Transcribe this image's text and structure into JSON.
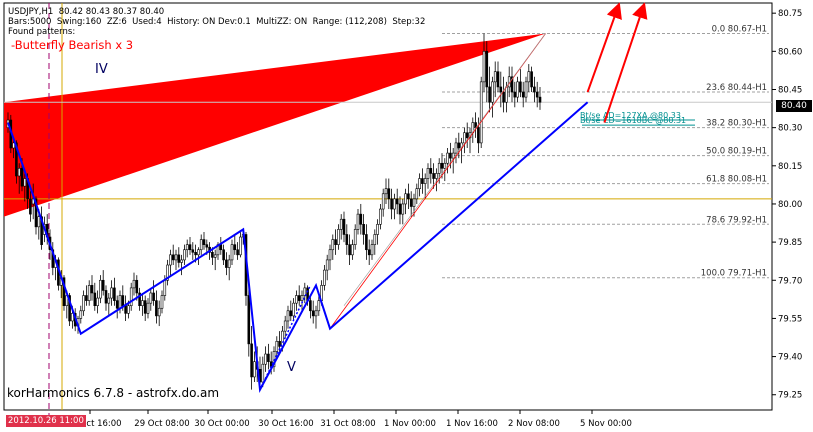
{
  "header": {
    "line1": "USDJPY,H1  80.42 80.43 80.37 80.40",
    "line2": "Bars:5000  Swing:160  ZZ:6  Used:4  History: ON Dev:0.1  MultiZZ: ON  Range: (112,208)  Step:32",
    "line3": "Found patterns:",
    "pattern": "-Butterfly Bearish x 3"
  },
  "labels": {
    "wave_iv": "IV",
    "wave_v": "V",
    "footer": "korHarmonics 6.7.8 - astrofx.do.am"
  },
  "current_price": "80.40",
  "date_flag": "2012.10.26 11:00",
  "colors": {
    "candle": "#000000",
    "red": "#ff0000",
    "blue": "#0000ff",
    "teal": "#009090",
    "fib": "#a0a0a0",
    "gold": "#d4a800",
    "magenta": "#a0006e",
    "axis": "#000000"
  },
  "chart_data": {
    "type": "line",
    "title": "USDJPY,H1",
    "ylim": [
      79.19,
      80.79
    ],
    "y_ticks": [
      "80.75",
      "80.60",
      "80.45",
      "80.30",
      "80.15",
      "80.00",
      "79.85",
      "79.70",
      "79.55",
      "79.40",
      "79.25"
    ],
    "x_ticks": [
      "ct 16:00",
      "29 Oct 08:00",
      "30 Oct 00:00",
      "30 Oct 16:00",
      "31 Oct 08:00",
      "1 Nov 00:00",
      "1 Nov 16:00",
      "2 Nov 08:00",
      "5 Nov 00:00"
    ],
    "fib_levels": [
      {
        "label": "0.0 80.67-H1",
        "value": 80.67
      },
      {
        "label": "23.6 80.44-H1",
        "value": 80.44
      },
      {
        "label": "38.2 80.30-H1",
        "value": 80.3
      },
      {
        "label": "50.0 80.19-H1",
        "value": 80.19
      },
      {
        "label": "61.8 80.08-H1",
        "value": 80.08
      },
      {
        "label": "78.6 79.92-H1",
        "value": 79.92
      },
      {
        "label": "100.0 79.71-H1",
        "value": 79.71
      }
    ],
    "target_labels": [
      {
        "label": "Bt/se AD=127XA  @80.33",
        "value": 80.33
      },
      {
        "label": "Bt/se CD=1618BC  @80.31",
        "value": 80.31
      }
    ],
    "horizontal_lines": [
      80.02
    ],
    "last_price": 80.4,
    "zigzag": [
      {
        "bar": 0,
        "price": 80.32
      },
      {
        "bar": 26,
        "price": 79.49
      },
      {
        "bar": 84,
        "price": 79.9
      },
      {
        "bar": 90,
        "price": 79.27
      },
      {
        "bar": 110,
        "price": 79.68
      },
      {
        "bar": 115,
        "price": 79.51
      },
      {
        "bar": 207,
        "price": 80.4
      }
    ],
    "forecast_arrows": [
      {
        "from": {
          "bar": 207,
          "price": 80.44
        },
        "to": {
          "bar": 218,
          "price": 80.79
        }
      },
      {
        "from": {
          "bar": 213,
          "price": 80.32
        },
        "to": {
          "bar": 227,
          "price": 80.79
        }
      }
    ],
    "ohlc": [
      [
        80.3,
        80.36,
        80.28,
        80.33
      ],
      [
        80.33,
        80.35,
        80.2,
        80.22
      ],
      [
        80.22,
        80.26,
        80.18,
        80.24
      ],
      [
        80.24,
        80.25,
        80.08,
        80.11
      ],
      [
        80.11,
        80.16,
        80.04,
        80.14
      ],
      [
        80.14,
        80.18,
        80.05,
        80.07
      ],
      [
        80.07,
        80.13,
        80.01,
        80.1
      ],
      [
        80.1,
        80.12,
        79.98,
        80.02
      ],
      [
        80.02,
        80.05,
        79.93,
        79.96
      ],
      [
        80.0,
        80.08,
        79.94,
        80.02
      ],
      [
        80.02,
        80.03,
        79.88,
        79.91
      ],
      [
        79.91,
        79.98,
        79.86,
        79.95
      ],
      [
        79.95,
        79.99,
        79.82,
        79.84
      ],
      [
        79.88,
        79.95,
        79.85,
        79.92
      ],
      [
        79.92,
        79.96,
        79.84,
        79.87
      ],
      [
        79.87,
        79.9,
        79.78,
        79.82
      ],
      [
        79.82,
        79.85,
        79.72,
        79.75
      ],
      [
        79.75,
        79.8,
        79.7,
        79.78
      ],
      [
        79.78,
        79.79,
        79.66,
        79.68
      ],
      [
        79.68,
        79.74,
        79.63,
        79.71
      ],
      [
        79.71,
        79.72,
        79.58,
        79.6
      ],
      [
        79.6,
        79.66,
        79.55,
        79.64
      ],
      [
        79.64,
        79.65,
        79.52,
        79.54
      ],
      [
        79.54,
        79.6,
        79.51,
        79.57
      ],
      [
        79.57,
        79.59,
        79.5,
        79.52
      ],
      [
        79.52,
        79.56,
        79.49,
        79.55
      ],
      [
        79.55,
        79.6,
        79.53,
        79.58
      ],
      [
        79.58,
        79.66,
        79.56,
        79.64
      ],
      [
        79.64,
        79.68,
        79.6,
        79.62
      ],
      [
        79.62,
        79.7,
        79.6,
        79.68
      ],
      [
        79.68,
        79.72,
        79.62,
        79.65
      ],
      [
        79.65,
        79.69,
        79.58,
        79.6
      ],
      [
        79.6,
        79.66,
        79.57,
        79.63
      ],
      [
        79.63,
        79.72,
        79.61,
        79.7
      ],
      [
        79.7,
        79.74,
        79.64,
        79.66
      ],
      [
        79.66,
        79.68,
        79.58,
        79.61
      ],
      [
        79.61,
        79.65,
        79.56,
        79.63
      ],
      [
        79.63,
        79.7,
        79.6,
        79.67
      ],
      [
        79.67,
        79.71,
        79.6,
        79.62
      ],
      [
        79.62,
        79.64,
        79.55,
        79.59
      ],
      [
        79.59,
        79.66,
        79.57,
        79.64
      ],
      [
        79.64,
        79.68,
        79.58,
        79.6
      ],
      [
        79.6,
        79.64,
        79.54,
        79.57
      ],
      [
        79.57,
        79.62,
        79.55,
        79.6
      ],
      [
        79.6,
        79.69,
        79.58,
        79.67
      ],
      [
        79.67,
        79.73,
        79.64,
        79.7
      ],
      [
        79.7,
        79.72,
        79.62,
        79.65
      ],
      [
        79.65,
        79.67,
        79.58,
        79.6
      ],
      [
        79.6,
        79.65,
        79.56,
        79.62
      ],
      [
        79.62,
        79.64,
        79.54,
        79.57
      ],
      [
        79.57,
        79.63,
        79.55,
        79.61
      ],
      [
        79.61,
        79.67,
        79.58,
        79.65
      ],
      [
        79.65,
        79.7,
        79.6,
        79.62
      ],
      [
        79.62,
        79.66,
        79.53,
        79.56
      ],
      [
        79.56,
        79.62,
        79.52,
        79.59
      ],
      [
        79.59,
        79.66,
        79.57,
        79.64
      ],
      [
        79.64,
        79.72,
        79.62,
        79.7
      ],
      [
        79.7,
        79.78,
        79.68,
        79.76
      ],
      [
        79.76,
        79.82,
        79.72,
        79.8
      ],
      [
        79.8,
        79.84,
        79.76,
        79.78
      ],
      [
        79.78,
        79.82,
        79.74,
        79.8
      ],
      [
        79.8,
        79.83,
        79.75,
        79.77
      ],
      [
        79.77,
        79.8,
        79.72,
        79.78
      ],
      [
        79.78,
        79.84,
        79.76,
        79.82
      ],
      [
        79.82,
        79.86,
        79.79,
        79.84
      ],
      [
        79.84,
        79.87,
        79.8,
        79.82
      ],
      [
        79.82,
        79.85,
        79.78,
        79.81
      ],
      [
        79.81,
        79.84,
        79.77,
        79.8
      ],
      [
        79.8,
        79.83,
        79.76,
        79.82
      ],
      [
        79.82,
        79.88,
        79.8,
        79.86
      ],
      [
        79.86,
        79.89,
        79.82,
        79.84
      ],
      [
        79.84,
        79.86,
        79.8,
        79.83
      ],
      [
        79.83,
        79.85,
        79.78,
        79.81
      ],
      [
        79.81,
        79.83,
        79.76,
        79.79
      ],
      [
        79.79,
        79.82,
        79.74,
        79.8
      ],
      [
        79.8,
        79.85,
        79.78,
        79.84
      ],
      [
        79.84,
        79.87,
        79.8,
        79.82
      ],
      [
        79.82,
        79.84,
        79.76,
        79.78
      ],
      [
        79.78,
        79.81,
        79.72,
        79.75
      ],
      [
        79.75,
        79.8,
        79.7,
        79.78
      ],
      [
        79.78,
        79.86,
        79.76,
        79.84
      ],
      [
        79.84,
        79.88,
        79.8,
        79.82
      ],
      [
        79.82,
        79.85,
        79.78,
        79.8
      ],
      [
        79.8,
        79.89,
        79.79,
        79.87
      ],
      [
        79.87,
        79.9,
        79.84,
        79.88
      ],
      [
        79.88,
        79.89,
        79.6,
        79.64
      ],
      [
        79.64,
        79.7,
        79.4,
        79.45
      ],
      [
        79.45,
        79.52,
        79.27,
        79.32
      ],
      [
        79.32,
        79.42,
        79.3,
        79.38
      ],
      [
        79.38,
        79.44,
        79.3,
        79.35
      ],
      [
        79.35,
        79.4,
        79.28,
        79.3
      ],
      [
        79.3,
        79.4,
        79.28,
        79.37
      ],
      [
        79.37,
        79.44,
        79.34,
        79.41
      ],
      [
        79.41,
        79.45,
        79.35,
        79.38
      ],
      [
        79.38,
        79.42,
        79.33,
        79.36
      ],
      [
        79.36,
        79.44,
        79.34,
        79.42
      ],
      [
        79.42,
        79.48,
        79.4,
        79.46
      ],
      [
        79.46,
        79.5,
        79.41,
        79.44
      ],
      [
        79.44,
        79.52,
        79.42,
        79.5
      ],
      [
        79.5,
        79.56,
        79.47,
        79.54
      ],
      [
        79.54,
        79.6,
        79.51,
        79.58
      ],
      [
        79.58,
        79.62,
        79.54,
        79.56
      ],
      [
        79.56,
        79.63,
        79.54,
        79.61
      ],
      [
        79.61,
        79.66,
        79.58,
        79.64
      ],
      [
        79.64,
        79.68,
        79.6,
        79.62
      ],
      [
        79.62,
        79.66,
        79.58,
        79.64
      ],
      [
        79.64,
        79.69,
        79.61,
        79.67
      ],
      [
        79.67,
        79.68,
        79.6,
        79.62
      ],
      [
        79.62,
        79.64,
        79.55,
        79.58
      ],
      [
        79.58,
        79.62,
        79.53,
        79.56
      ],
      [
        79.56,
        79.6,
        79.51,
        79.58
      ],
      [
        79.58,
        79.64,
        79.56,
        79.62
      ],
      [
        79.62,
        79.7,
        79.6,
        79.68
      ],
      [
        79.68,
        79.76,
        79.66,
        79.74
      ],
      [
        79.74,
        79.8,
        79.7,
        79.78
      ],
      [
        79.78,
        79.84,
        79.74,
        79.82
      ],
      [
        79.82,
        79.88,
        79.78,
        79.86
      ],
      [
        79.86,
        79.9,
        79.8,
        79.84
      ],
      [
        79.84,
        79.92,
        79.82,
        79.9
      ],
      [
        79.9,
        79.96,
        79.86,
        79.94
      ],
      [
        79.94,
        79.97,
        79.85,
        79.88
      ],
      [
        79.88,
        79.92,
        79.8,
        79.84
      ],
      [
        79.84,
        79.88,
        79.76,
        79.8
      ],
      [
        79.8,
        79.86,
        79.78,
        79.84
      ],
      [
        79.84,
        79.92,
        79.82,
        79.9
      ],
      [
        79.9,
        79.98,
        79.88,
        79.96
      ],
      [
        79.96,
        80.0,
        79.88,
        79.92
      ],
      [
        79.92,
        79.96,
        79.84,
        79.88
      ],
      [
        79.88,
        79.92,
        79.78,
        79.82
      ],
      [
        79.82,
        79.86,
        79.76,
        79.8
      ],
      [
        79.8,
        79.86,
        79.78,
        79.84
      ],
      [
        79.84,
        79.9,
        79.8,
        79.88
      ],
      [
        79.88,
        79.94,
        79.84,
        79.92
      ],
      [
        79.92,
        80.0,
        79.9,
        79.98
      ],
      [
        79.98,
        80.06,
        79.95,
        80.04
      ],
      [
        80.04,
        80.1,
        80.0,
        80.06
      ],
      [
        80.06,
        80.1,
        79.98,
        80.02
      ],
      [
        80.02,
        80.06,
        79.94,
        79.98
      ],
      [
        79.98,
        80.04,
        79.94,
        80.02
      ],
      [
        80.02,
        80.06,
        79.96,
        80.0
      ],
      [
        80.0,
        80.03,
        79.92,
        79.96
      ],
      [
        79.96,
        80.02,
        79.92,
        80.0
      ],
      [
        80.0,
        80.06,
        79.96,
        80.04
      ],
      [
        80.04,
        80.08,
        79.98,
        80.02
      ],
      [
        80.02,
        80.05,
        79.95,
        79.99
      ],
      [
        79.99,
        80.04,
        79.95,
        80.02
      ],
      [
        80.02,
        80.08,
        80.0,
        80.06
      ],
      [
        80.06,
        80.12,
        80.03,
        80.1
      ],
      [
        80.1,
        80.14,
        80.04,
        80.08
      ],
      [
        80.08,
        80.12,
        80.02,
        80.1
      ],
      [
        80.1,
        80.16,
        80.06,
        80.14
      ],
      [
        80.14,
        80.18,
        80.08,
        80.12
      ],
      [
        80.12,
        80.16,
        80.06,
        80.1
      ],
      [
        80.1,
        80.14,
        80.05,
        80.12
      ],
      [
        80.12,
        80.18,
        80.08,
        80.16
      ],
      [
        80.16,
        80.2,
        80.1,
        80.14
      ],
      [
        80.14,
        80.18,
        80.09,
        80.16
      ],
      [
        80.16,
        80.22,
        80.12,
        80.2
      ],
      [
        80.2,
        80.24,
        80.14,
        80.18
      ],
      [
        80.18,
        80.22,
        80.12,
        80.2
      ],
      [
        80.2,
        80.26,
        80.16,
        80.24
      ],
      [
        80.24,
        80.28,
        80.18,
        80.22
      ],
      [
        80.22,
        80.26,
        80.16,
        80.24
      ],
      [
        80.24,
        80.3,
        80.2,
        80.28
      ],
      [
        80.28,
        80.32,
        80.22,
        80.26
      ],
      [
        80.26,
        80.3,
        80.2,
        80.28
      ],
      [
        80.28,
        80.34,
        80.24,
        80.32
      ],
      [
        80.32,
        80.36,
        80.26,
        80.3
      ],
      [
        80.3,
        80.34,
        80.2,
        80.24
      ],
      [
        80.24,
        80.5,
        80.22,
        80.48
      ],
      [
        80.48,
        80.67,
        80.44,
        80.6
      ],
      [
        80.6,
        80.64,
        80.4,
        80.46
      ],
      [
        80.46,
        80.54,
        80.36,
        80.4
      ],
      [
        80.4,
        80.5,
        80.34,
        80.48
      ],
      [
        80.48,
        80.56,
        80.42,
        80.52
      ],
      [
        80.52,
        80.56,
        80.44,
        80.46
      ],
      [
        80.46,
        80.52,
        80.38,
        80.44
      ],
      [
        80.44,
        80.5,
        80.36,
        80.4
      ],
      [
        80.4,
        80.48,
        80.36,
        80.46
      ],
      [
        80.46,
        80.54,
        80.42,
        80.5
      ],
      [
        80.5,
        80.54,
        80.4,
        80.44
      ],
      [
        80.44,
        80.48,
        80.38,
        80.42
      ],
      [
        80.42,
        80.5,
        80.4,
        80.48
      ],
      [
        80.48,
        80.53,
        80.42,
        80.44
      ],
      [
        80.44,
        80.48,
        80.38,
        80.42
      ],
      [
        80.42,
        80.5,
        80.4,
        80.48
      ],
      [
        80.48,
        80.55,
        80.44,
        80.52
      ],
      [
        80.52,
        80.54,
        80.44,
        80.46
      ],
      [
        80.46,
        80.5,
        80.4,
        80.44
      ],
      [
        80.44,
        80.48,
        80.38,
        80.42
      ],
      [
        80.42,
        80.46,
        80.37,
        80.4
      ]
    ]
  }
}
